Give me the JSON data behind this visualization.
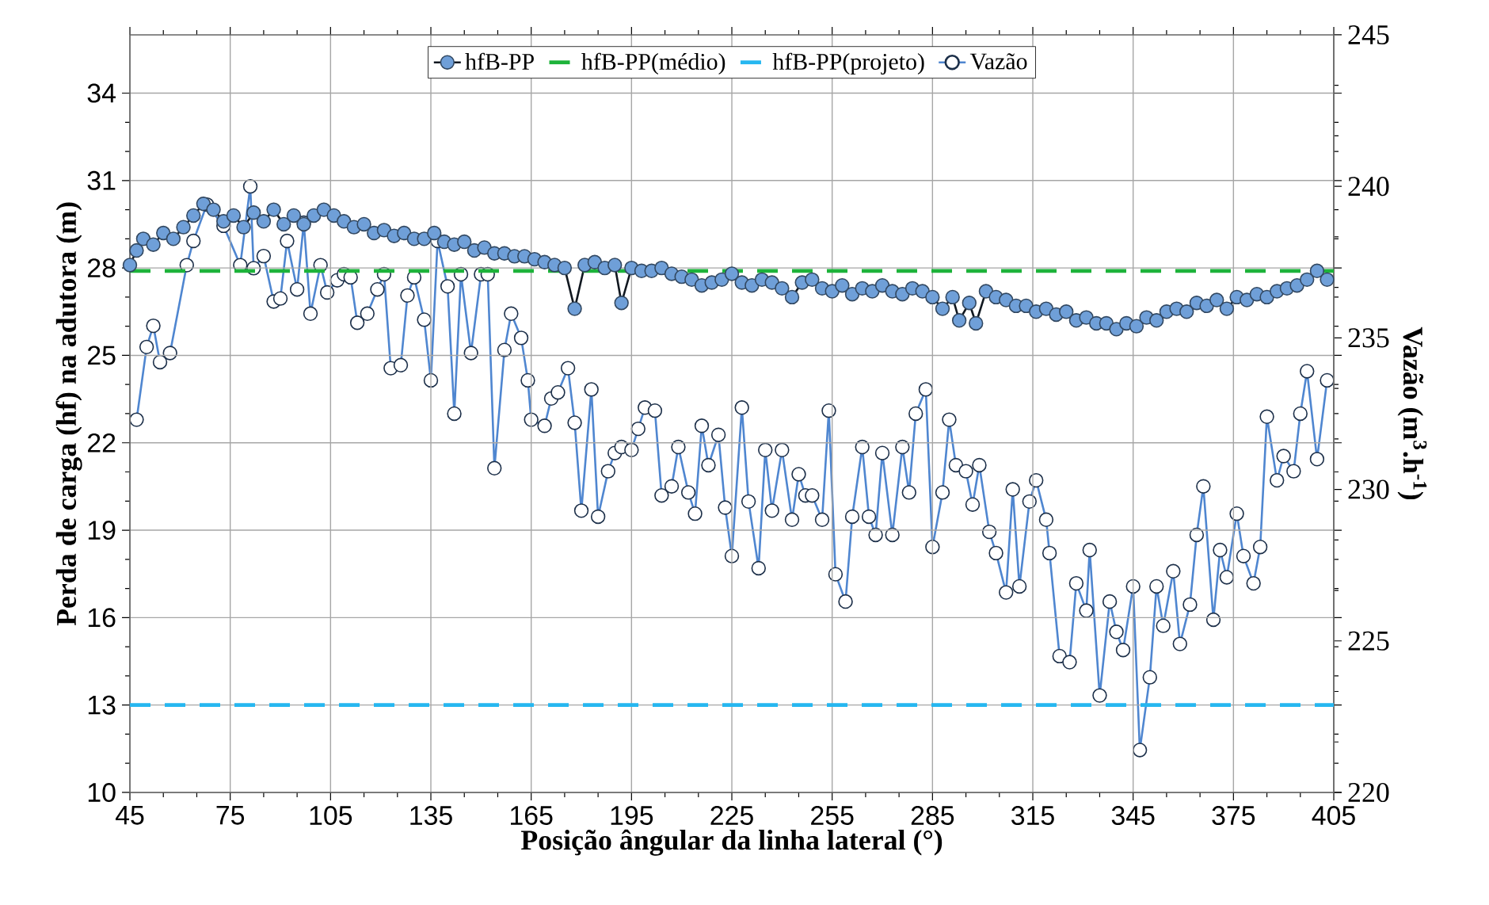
{
  "chart_data": {
    "type": "line",
    "xlabel": "Posição ângular da linha lateral (°)",
    "ylabel": "Perda de carga   (hf)  na adutora (m)",
    "y2label": "Vazão (m$^{3}$.h$^{-1}$)",
    "xlim": [
      45,
      405
    ],
    "xticks": [
      45,
      75,
      105,
      135,
      165,
      195,
      225,
      255,
      285,
      315,
      345,
      375,
      405
    ],
    "ylim": [
      10,
      36
    ],
    "yticks": [
      10,
      13,
      16,
      19,
      22,
      25,
      28,
      31,
      34
    ],
    "y2lim": [
      220,
      245
    ],
    "y2ticks": [
      220,
      225,
      230,
      235,
      240,
      245
    ],
    "grid": true,
    "legend": "top",
    "marker": "circle",
    "series": [
      {
        "name": "hfB-PP",
        "color": "#6f9fd8",
        "axis": "y",
        "x": [
          45,
          47,
          49,
          52,
          55,
          58,
          61,
          64,
          67,
          70,
          73,
          76,
          79,
          82,
          85,
          88,
          91,
          94,
          97,
          100,
          103,
          106,
          109,
          112,
          115,
          118,
          121,
          124,
          127,
          130,
          133,
          136,
          139,
          142,
          145,
          148,
          151,
          154,
          157,
          160,
          163,
          166,
          169,
          172,
          175,
          178,
          181,
          184,
          187,
          190,
          192,
          195,
          198,
          201,
          204,
          207,
          210,
          213,
          216,
          219,
          222,
          225,
          228,
          231,
          234,
          237,
          240,
          243,
          246,
          249,
          252,
          255,
          258,
          261,
          264,
          267,
          270,
          273,
          276,
          279,
          282,
          285,
          288,
          291,
          293,
          296,
          298,
          301,
          304,
          307,
          310,
          313,
          316,
          319,
          322,
          325,
          328,
          331,
          334,
          337,
          340,
          343,
          346,
          349,
          352,
          355,
          358,
          361,
          364,
          367,
          370,
          373,
          376,
          379,
          382,
          385,
          388,
          391,
          394,
          397,
          400,
          403
        ],
        "values": [
          28.1,
          28.6,
          29.0,
          28.8,
          29.2,
          29.0,
          29.4,
          29.8,
          30.2,
          30.0,
          29.6,
          29.8,
          29.4,
          29.9,
          29.6,
          30.0,
          29.5,
          29.8,
          29.5,
          29.8,
          30.0,
          29.8,
          29.6,
          29.4,
          29.5,
          29.2,
          29.3,
          29.1,
          29.2,
          29.0,
          29.0,
          29.2,
          28.9,
          28.8,
          28.9,
          28.6,
          28.7,
          28.5,
          28.5,
          28.4,
          28.4,
          28.3,
          28.2,
          28.1,
          28.0,
          26.6,
          28.1,
          28.2,
          28.0,
          28.1,
          26.8,
          28.0,
          27.9,
          27.9,
          28.0,
          27.8,
          27.7,
          27.6,
          27.4,
          27.5,
          27.6,
          27.8,
          27.5,
          27.4,
          27.6,
          27.5,
          27.3,
          27.0,
          27.5,
          27.6,
          27.3,
          27.2,
          27.4,
          27.1,
          27.3,
          27.2,
          27.4,
          27.2,
          27.1,
          27.3,
          27.2,
          27.0,
          26.6,
          27.0,
          26.2,
          26.8,
          26.1,
          27.2,
          27.0,
          26.9,
          26.7,
          26.7,
          26.5,
          26.6,
          26.4,
          26.5,
          26.2,
          26.3,
          26.1,
          26.1,
          25.9,
          26.1,
          26.0,
          26.3,
          26.2,
          26.5,
          26.6,
          26.5,
          26.8,
          26.7,
          26.9,
          26.6,
          27.0,
          26.9,
          27.1,
          27.0,
          27.2,
          27.3,
          27.4,
          27.6,
          27.9,
          27.6
        ]
      },
      {
        "name": "Vazão",
        "color": "#4f86d0",
        "axis": "y2",
        "x": [
          47,
          50,
          52,
          54,
          57,
          62,
          64,
          68,
          73,
          78,
          81,
          82,
          85,
          88,
          90,
          92,
          95,
          97,
          99,
          102,
          104,
          107,
          109,
          111,
          113,
          116,
          119,
          121,
          123,
          126,
          128,
          130,
          133,
          135,
          137,
          140,
          142,
          144,
          147,
          150,
          152,
          154,
          157,
          159,
          162,
          164,
          165,
          169,
          171,
          173,
          176,
          178,
          180,
          183,
          185,
          188,
          190,
          192,
          195,
          197,
          199,
          202,
          204,
          207,
          209,
          212,
          214,
          216,
          218,
          221,
          223,
          225,
          228,
          230,
          233,
          235,
          237,
          240,
          243,
          245,
          247,
          249,
          252,
          254,
          256,
          259,
          261,
          264,
          266,
          268,
          270,
          273,
          276,
          278,
          280,
          283,
          285,
          288,
          290,
          292,
          295,
          297,
          299,
          302,
          304,
          307,
          309,
          311,
          314,
          316,
          319,
          320,
          323,
          326,
          328,
          331,
          332,
          335,
          338,
          340,
          342,
          345,
          347,
          350,
          352,
          354,
          357,
          359,
          362,
          364,
          366,
          369,
          371,
          373,
          376,
          378,
          381,
          383,
          385,
          388,
          390,
          393,
          395,
          397,
          400,
          403
        ],
        "values": [
          232.3,
          234.7,
          235.4,
          234.2,
          234.5,
          237.4,
          238.2,
          239.4,
          238.7,
          237.4,
          240.0,
          237.3,
          237.7,
          236.2,
          236.3,
          238.2,
          236.6,
          238.8,
          235.8,
          237.4,
          236.5,
          236.9,
          237.1,
          237.0,
          235.5,
          235.8,
          236.6,
          237.1,
          234.0,
          234.1,
          236.4,
          237.0,
          235.6,
          233.6,
          238.2,
          236.7,
          232.5,
          237.1,
          234.5,
          237.1,
          237.1,
          230.7,
          234.6,
          235.8,
          235.0,
          233.6,
          232.3,
          232.1,
          233.0,
          233.2,
          234.0,
          232.2,
          229.3,
          233.3,
          229.1,
          230.6,
          231.2,
          231.4,
          231.3,
          232.0,
          232.7,
          232.6,
          229.8,
          230.1,
          231.4,
          229.9,
          229.2,
          232.1,
          230.8,
          231.8,
          229.4,
          227.8,
          232.7,
          229.6,
          227.4,
          231.3,
          229.3,
          231.3,
          229.0,
          230.5,
          229.8,
          229.8,
          229.0,
          232.6,
          227.2,
          226.3,
          229.1,
          231.4,
          229.1,
          228.5,
          231.2,
          228.5,
          231.4,
          229.9,
          232.5,
          233.3,
          228.1,
          229.9,
          232.3,
          230.8,
          230.6,
          229.5,
          230.8,
          228.6,
          227.9,
          226.6,
          230.0,
          226.8,
          229.6,
          230.3,
          229.0,
          227.9,
          224.5,
          224.3,
          226.9,
          226.0,
          228.0,
          223.2,
          226.3,
          225.3,
          224.7,
          226.8,
          221.4,
          223.8,
          226.8,
          225.5,
          227.3,
          224.9,
          226.2,
          228.5,
          230.1,
          225.7,
          228.0,
          227.1,
          229.2,
          227.8,
          226.9,
          228.1,
          232.4,
          230.3,
          231.1,
          230.6,
          232.5,
          233.9,
          231.0,
          233.6
        ]
      }
    ],
    "ref_lines": [
      {
        "axis": "y",
        "value": 27.9,
        "label": "hfB-PP(médio)",
        "color": "#1db33a",
        "line_style": "dashed"
      },
      {
        "axis": "y",
        "value": 13,
        "label": "hfB-PP(projeto)",
        "color": "#26b7f0",
        "line_style": "dashed"
      }
    ]
  }
}
